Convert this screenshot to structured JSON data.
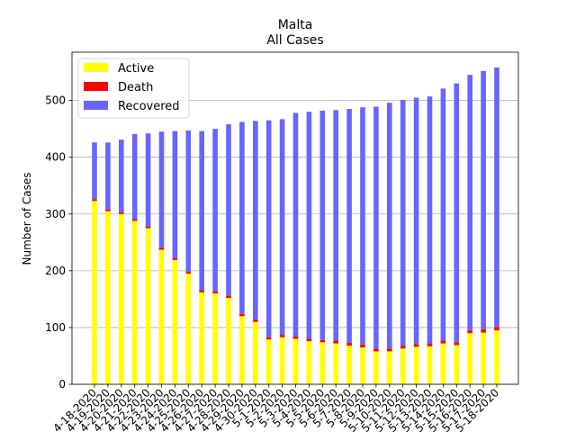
{
  "chart_data": {
    "type": "bar",
    "stacked": true,
    "title": "Malta",
    "subtitle": "All Cases",
    "xlabel": "",
    "ylabel": "Number of Cases",
    "ylim": [
      0,
      585
    ],
    "yticks": [
      0,
      100,
      200,
      300,
      400,
      500
    ],
    "grid": "y",
    "legend_position": "top-left",
    "categories": [
      "4-18-2020",
      "4-19-2020",
      "4-20-2020",
      "4-21-2020",
      "4-22-2020",
      "4-23-2020",
      "4-24-2020",
      "4-25-2020",
      "4-26-2020",
      "4-27-2020",
      "4-28-2020",
      "4-29-2020",
      "4-30-2020",
      "5-1-2020",
      "5-2-2020",
      "5-3-2020",
      "5-4-2020",
      "5-5-2020",
      "5-6-2020",
      "5-7-2020",
      "5-8-2020",
      "5-9-2020",
      "5-10-2020",
      "5-11-2020",
      "5-12-2020",
      "5-13-2020",
      "5-14-2020",
      "5-15-2020",
      "5-16-2020",
      "5-17-2020",
      "5-18-2020"
    ],
    "series": [
      {
        "name": "Active",
        "color": "#ffff00",
        "values": [
          323,
          305,
          300,
          288,
          275,
          237,
          219,
          195,
          162,
          160,
          152,
          120,
          110,
          79,
          83,
          80,
          76,
          74,
          72,
          68,
          65,
          58,
          58,
          63,
          66,
          67,
          72,
          69,
          90,
          91,
          95
        ]
      },
      {
        "name": "Death",
        "color": "#ff0000",
        "values": [
          3,
          3,
          3,
          3,
          3,
          3,
          3,
          3,
          4,
          4,
          4,
          4,
          4,
          4,
          4,
          4,
          4,
          4,
          5,
          5,
          5,
          5,
          5,
          5,
          5,
          5,
          5,
          5,
          5,
          6,
          6
        ]
      },
      {
        "name": "Recovered",
        "color": "#6666ff",
        "values": [
          100,
          118,
          128,
          150,
          164,
          205,
          224,
          249,
          280,
          286,
          302,
          338,
          350,
          382,
          380,
          394,
          400,
          404,
          406,
          412,
          418,
          426,
          433,
          433,
          434,
          435,
          444,
          456,
          450,
          455,
          457
        ]
      }
    ]
  }
}
